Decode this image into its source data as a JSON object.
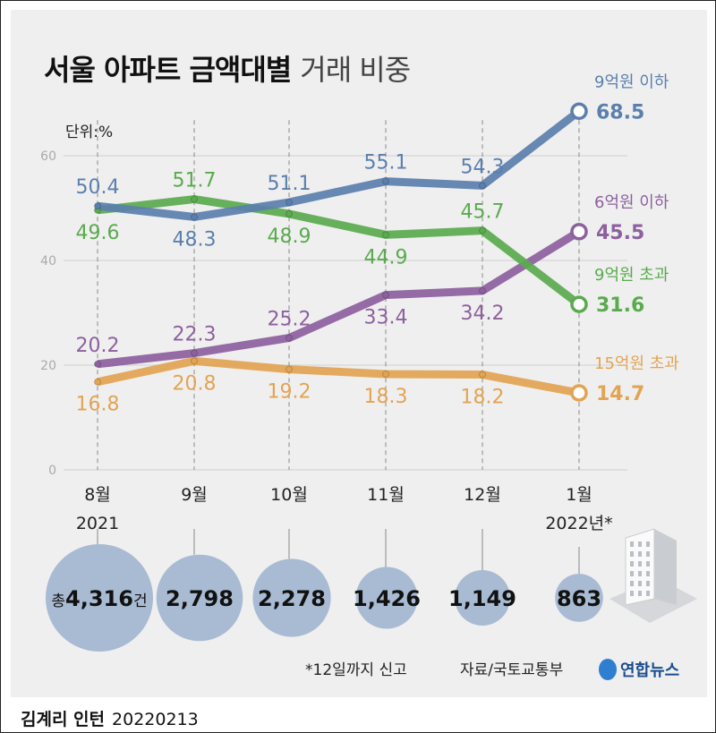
{
  "title_bold": "서울 아파트 금액대별",
  "title_light": "거래 비중",
  "unit": "단위:%",
  "chart_data": {
    "type": "line",
    "title": "서울 아파트 금액대별 거래 비중",
    "ylabel": "단위:%",
    "ylim": [
      0,
      60
    ],
    "yticks": [
      0,
      20,
      40,
      60
    ],
    "grid": true,
    "categories": [
      "8월\n2021",
      "9월",
      "10월",
      "11월",
      "12월",
      "1월\n2022년*"
    ],
    "series": [
      {
        "name": "9억원 이하",
        "color": "#5b7fad",
        "values": [
          50.4,
          48.3,
          51.1,
          55.1,
          54.3,
          68.5
        ]
      },
      {
        "name": "9억원 초과",
        "color": "#5aaa4e",
        "values": [
          49.6,
          51.7,
          48.9,
          44.9,
          45.7,
          31.6
        ]
      },
      {
        "name": "6억원 이하",
        "color": "#8d609e",
        "values": [
          20.2,
          22.3,
          25.2,
          33.4,
          34.2,
          45.5
        ]
      },
      {
        "name": "15억원 초과",
        "color": "#e2a453",
        "values": [
          16.8,
          20.8,
          19.2,
          18.3,
          18.2,
          14.7
        ]
      }
    ],
    "totals": {
      "prefix": "총",
      "suffix": "건",
      "values": [
        4316,
        2798,
        2278,
        1426,
        1149,
        863
      ],
      "labels": [
        "4,316",
        "2,798",
        "2,278",
        "1,426",
        "1,149",
        "863"
      ],
      "color": "#a8bbd3"
    }
  },
  "footnote": "*12일까지 신고",
  "source": "자료/국토교통부",
  "logo_text": "연합뉴스",
  "byline": "김계리 인턴",
  "date": "20220213"
}
